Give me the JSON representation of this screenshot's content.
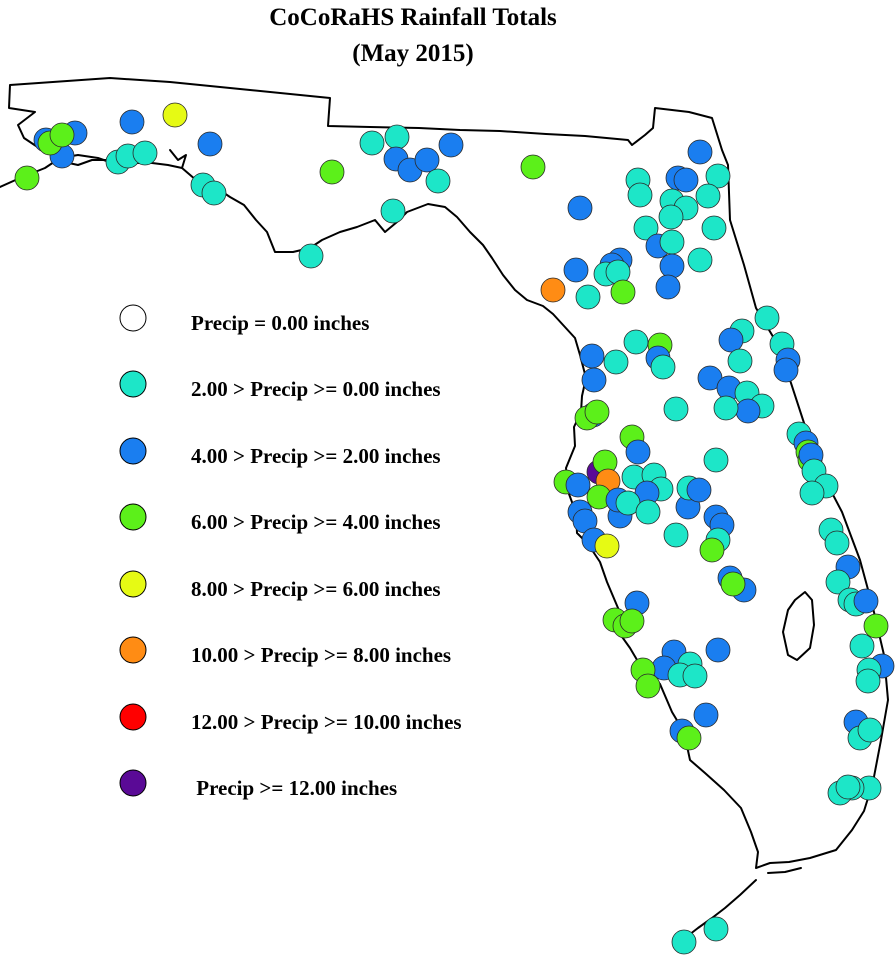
{
  "title": {
    "line1": "CoCoRaHS Rainfall Totals",
    "line2": "(May 2015)"
  },
  "legend": [
    {
      "label": "Precip = 0.00 inches",
      "color": "#ffffff",
      "category": "zero"
    },
    {
      "label": "2.00 > Precip >= 0.00 inches",
      "color": "#1de6c8",
      "category": "c0_2"
    },
    {
      "label": "4.00 > Precip >= 2.00 inches",
      "color": "#1a7ef0",
      "category": "c2_4"
    },
    {
      "label": "6.00 > Precip >= 4.00 inches",
      "color": "#5cf01a",
      "category": "c4_6"
    },
    {
      "label": "8.00 > Precip >= 6.00 inches",
      "color": "#e6fa14",
      "category": "c6_8"
    },
    {
      "label": "10.00 > Precip >= 8.00 inches",
      "color": "#ff8c14",
      "category": "c8_10"
    },
    {
      "label": "12.00 > Precip >= 10.00 inches",
      "color": "#ff0000",
      "category": "c10_12"
    },
    {
      "label": " Precip >= 12.00 inches",
      "color": "#5a0a96",
      "category": "c12"
    }
  ]
}
